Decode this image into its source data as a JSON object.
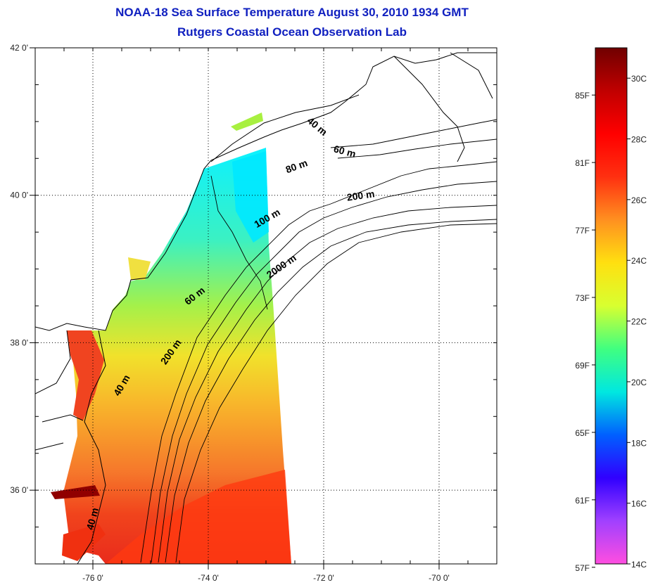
{
  "title": {
    "line1": "NOAA-18 Sea Surface Temperature August 30, 2010 1934 GMT",
    "line2": "Rutgers Coastal Ocean Observation Lab"
  },
  "map": {
    "lon_range": [
      -77.0,
      -69.0
    ],
    "lat_range": [
      35.0,
      42.0
    ],
    "lon_ticks": [
      {
        "value": -76,
        "label": "-76 0'"
      },
      {
        "value": -74,
        "label": "-74 0'"
      },
      {
        "value": -72,
        "label": "-72 0'"
      },
      {
        "value": -70,
        "label": "-70 0'"
      }
    ],
    "lat_ticks": [
      {
        "value": 42,
        "label": "42 0'"
      },
      {
        "value": 40,
        "label": "40 0'"
      },
      {
        "value": 38,
        "label": "38 0'"
      },
      {
        "value": 36,
        "label": "36 0'"
      }
    ],
    "grid": "dotted",
    "contour_labels": [
      {
        "text": "40 m",
        "lon": -72.15,
        "lat": 40.9,
        "angle": 40
      },
      {
        "text": "60 m",
        "lon": -71.65,
        "lat": 40.55,
        "angle": 15
      },
      {
        "text": "80 m",
        "lon": -72.45,
        "lat": 40.35,
        "angle": -20
      },
      {
        "text": "200 m",
        "lon": -71.35,
        "lat": 39.95,
        "angle": -8
      },
      {
        "text": "100 m",
        "lon": -72.95,
        "lat": 39.65,
        "angle": -30
      },
      {
        "text": "2000 m",
        "lon": -72.7,
        "lat": 39.0,
        "angle": -35
      },
      {
        "text": "60 m",
        "lon": -74.2,
        "lat": 38.6,
        "angle": -38
      },
      {
        "text": "200 m",
        "lon": -74.6,
        "lat": 37.85,
        "angle": -55
      },
      {
        "text": "40 m",
        "lon": -75.45,
        "lat": 37.4,
        "angle": -60
      },
      {
        "text": "40 m",
        "lon": -75.95,
        "lat": 35.6,
        "angle": -75
      }
    ]
  },
  "colorbar": {
    "min_c": 14,
    "max_c": 31,
    "colors": [
      "#ff4ee0",
      "#a040ff",
      "#3000ff",
      "#0060ff",
      "#00e8e0",
      "#40ff80",
      "#d8ff30",
      "#ffe010",
      "#ff9020",
      "#ff3010",
      "#ff0000",
      "#c00000",
      "#700000"
    ],
    "celsius_labels": [
      "30C",
      "28C",
      "26C",
      "24C",
      "22C",
      "20C",
      "18C",
      "16C",
      "14C"
    ],
    "fahrenheit_labels": [
      "85F",
      "81F",
      "77F",
      "73F",
      "69F",
      "65F",
      "61F",
      "57F"
    ]
  }
}
